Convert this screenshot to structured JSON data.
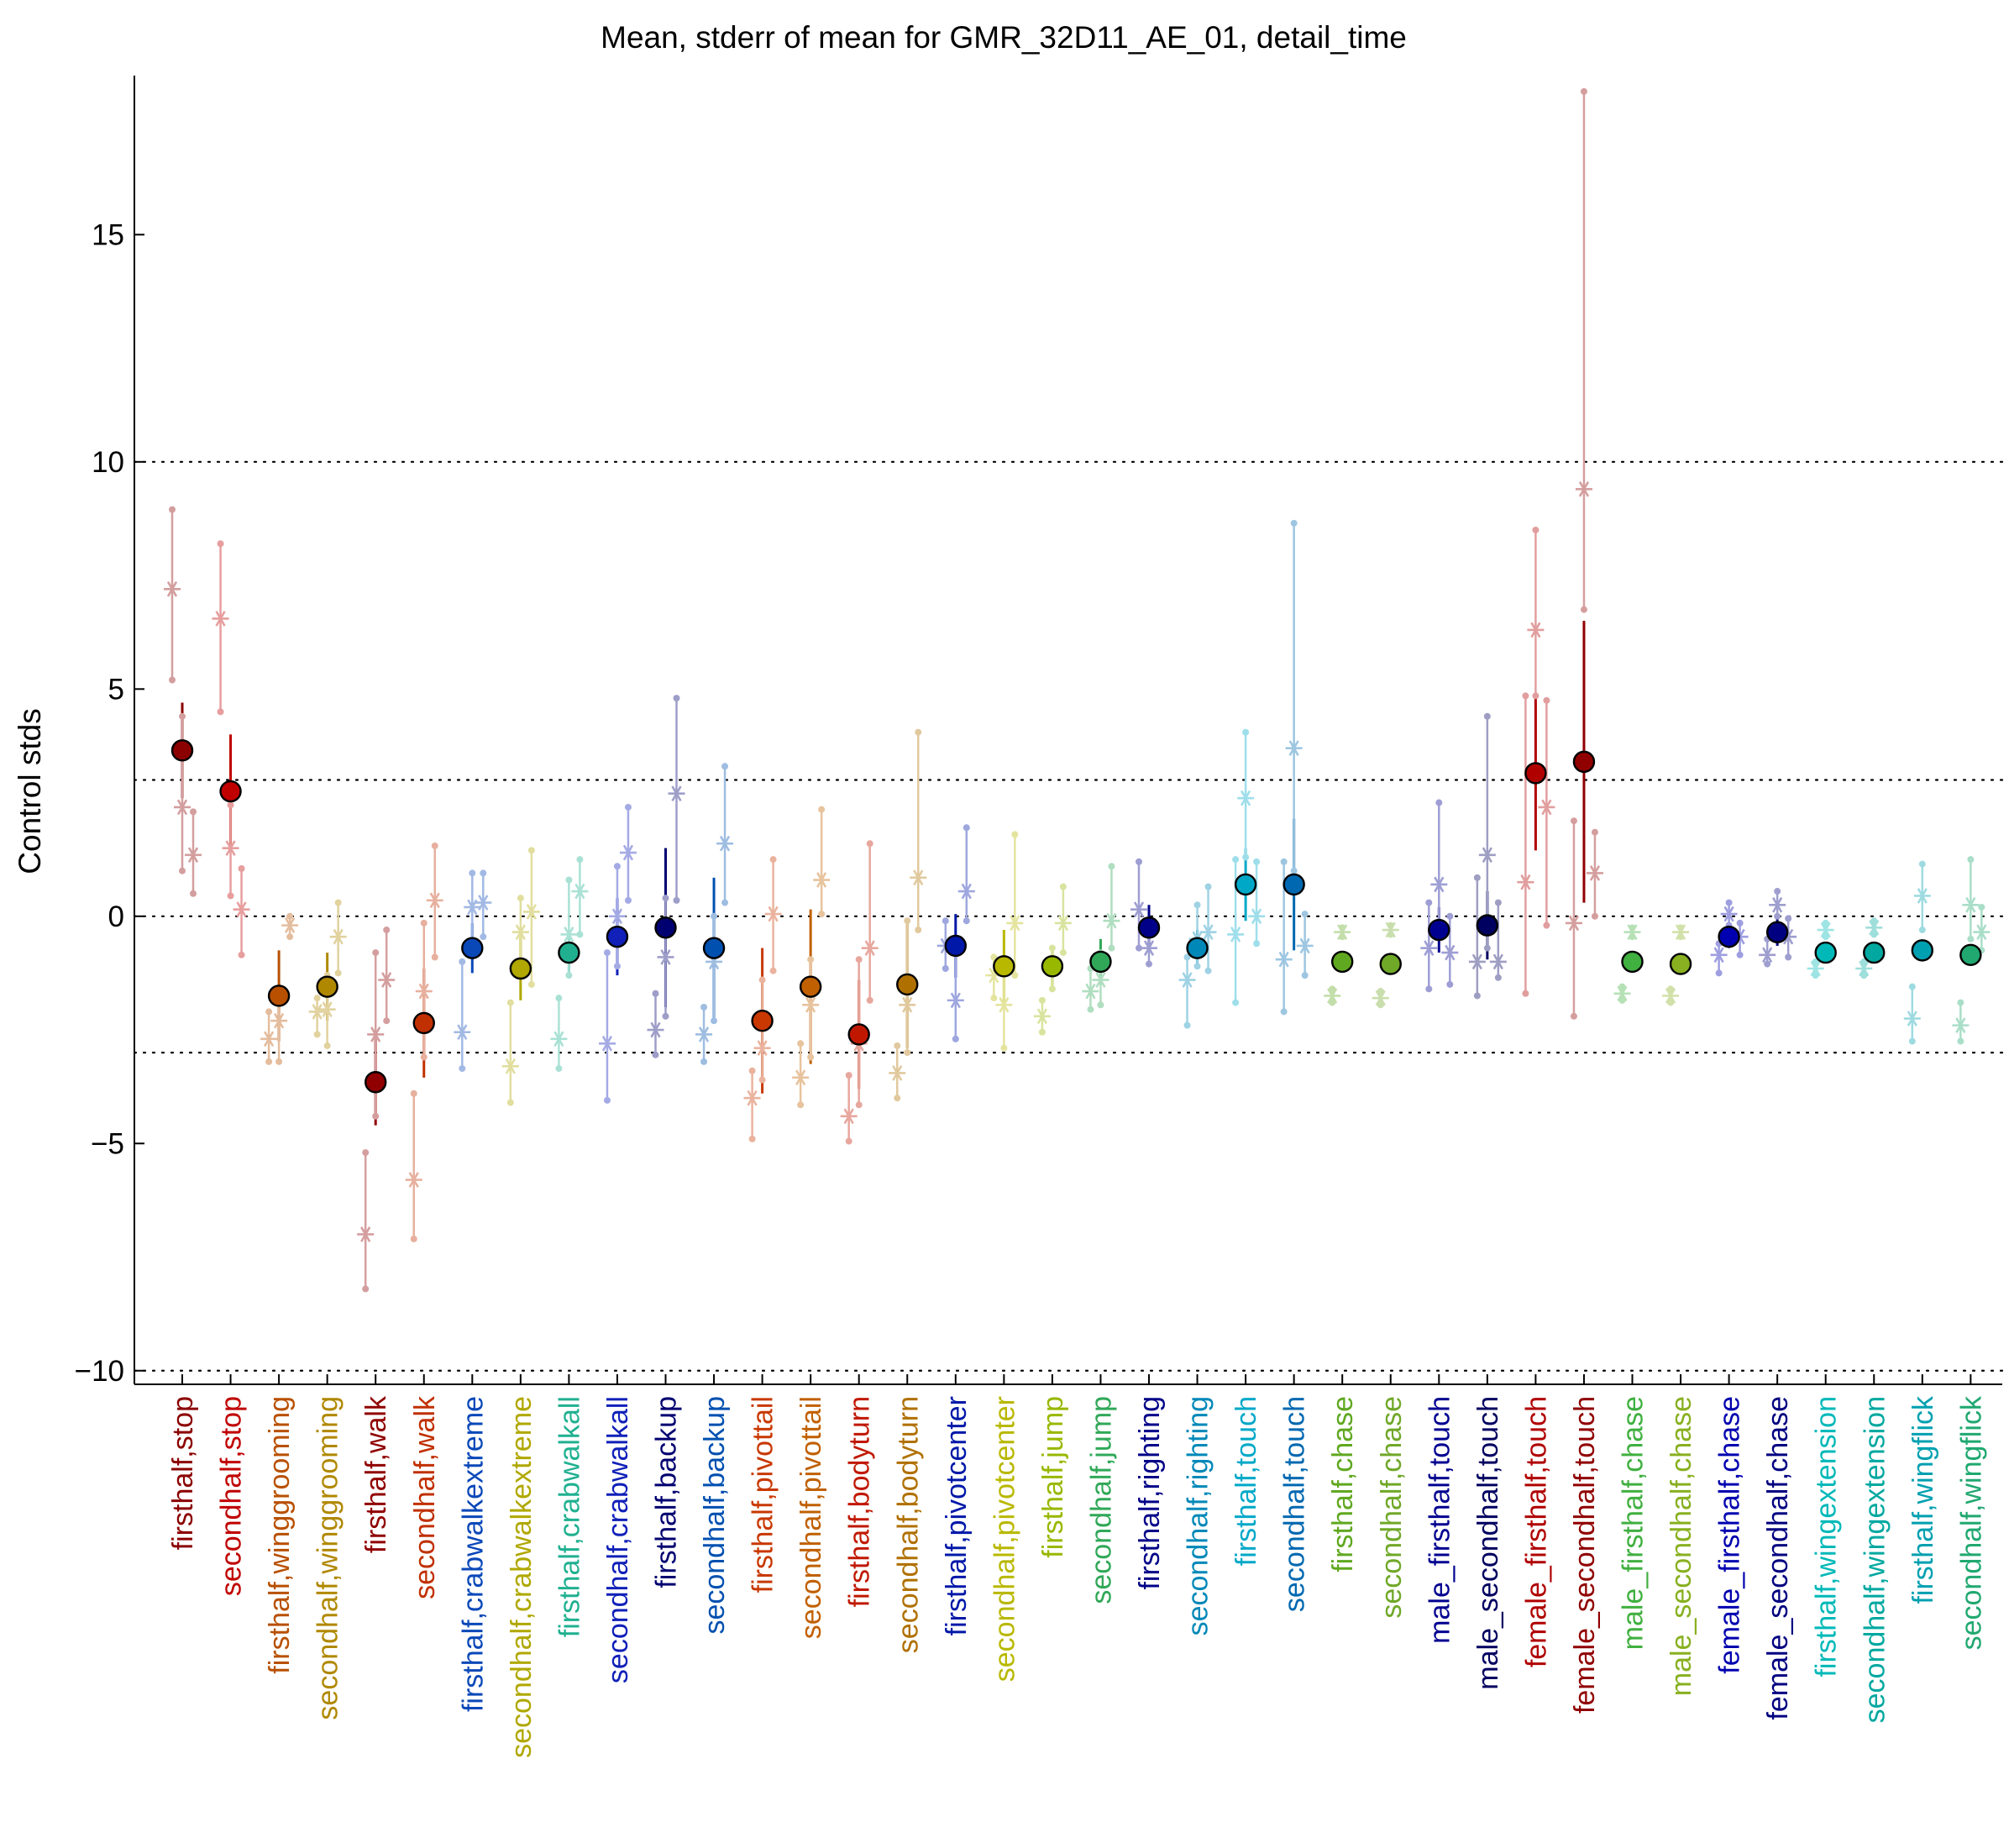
{
  "chart_data": {
    "type": "scatter",
    "title": "Mean, stderr of mean for GMR_32D11_AE_01, detail_time",
    "xlabel": "",
    "ylabel": "Control stds",
    "ylim": [
      -10.3,
      18.5
    ],
    "yticks": [
      -10,
      -5,
      0,
      5,
      10,
      15
    ],
    "reference_lines": [
      -10,
      -3,
      0,
      3,
      10
    ],
    "categories": [
      "firsthalf,stop",
      "secondhalf,stop",
      "firsthalf,winggrooming",
      "secondhalf,winggrooming",
      "firsthalf,walk",
      "secondhalf,walk",
      "firsthalf,crabwalkextreme",
      "secondhalf,crabwalkextreme",
      "firsthalf,crabwalkall",
      "secondhalf,crabwalkall",
      "firsthalf,backup",
      "secondhalf,backup",
      "firsthalf,pivottail",
      "secondhalf,pivottail",
      "firsthalf,bodyturn",
      "secondhalf,bodyturn",
      "firsthalf,pivotcenter",
      "secondhalf,pivotcenter",
      "firsthalf,jump",
      "secondhalf,jump",
      "firsthalf,righting",
      "secondhalf,righting",
      "firsthalf,touch",
      "secondhalf,touch",
      "firsthalf,chase",
      "secondhalf,chase",
      "male_firsthalf,touch",
      "male_secondhalf,touch",
      "female_firsthalf,touch",
      "female_secondhalf,touch",
      "male_firsthalf,chase",
      "male_secondhalf,chase",
      "female_firsthalf,chase",
      "female_secondhalf,chase",
      "firsthalf,wingextension",
      "secondhalf,wingextension",
      "firsthalf,wingflick",
      "secondhalf,wingflick"
    ],
    "colors": [
      "#8b0000",
      "#c00000",
      "#b85000",
      "#b08800",
      "#900000",
      "#c03000",
      "#0a48b8",
      "#b0a800",
      "#20b090",
      "#1020b8",
      "#000070",
      "#0050b0",
      "#c83800",
      "#c06000",
      "#c01800",
      "#b07000",
      "#0018a8",
      "#b8b800",
      "#98b800",
      "#30a858",
      "#000088",
      "#0088b8",
      "#00a8c8",
      "#0068b0",
      "#60a820",
      "#70a828",
      "#000090",
      "#000060",
      "#b00000",
      "#900000",
      "#40b040",
      "#88b020",
      "#0000b0",
      "#000080",
      "#00b8b8",
      "#00a8a0",
      "#00a0b0",
      "#20a870"
    ],
    "mean": [
      3.65,
      2.75,
      -1.75,
      -1.55,
      -3.65,
      -2.35,
      -0.7,
      -1.15,
      -0.8,
      -0.45,
      -0.25,
      -0.7,
      -2.3,
      -1.55,
      -2.6,
      -1.5,
      -0.65,
      -1.1,
      -1.1,
      -1.0,
      -0.25,
      -0.7,
      0.7,
      0.7,
      -1.0,
      -1.05,
      -0.3,
      -0.2,
      3.15,
      3.4,
      -1.0,
      -1.05,
      -0.45,
      -0.35,
      -0.8,
      -0.8,
      -0.75,
      -0.85
    ],
    "sem": [
      1.05,
      1.25,
      1.0,
      0.75,
      0.95,
      1.2,
      0.55,
      0.7,
      0.45,
      0.85,
      1.75,
      1.55,
      1.6,
      1.7,
      1.2,
      1.4,
      0.7,
      0.8,
      0.45,
      0.5,
      0.5,
      0.4,
      0.8,
      1.45,
      0.15,
      0.15,
      0.5,
      0.75,
      1.7,
      3.1,
      0.1,
      0.1,
      0.25,
      0.3,
      0.1,
      0.1,
      0.15,
      0.15
    ],
    "individual": [
      {
        "left": [
          7.2,
          8.95,
          5.2
        ],
        "right": [
          2.4,
          4.4,
          1.0
        ],
        "right2": [
          1.35,
          2.3,
          0.5
        ]
      },
      {
        "left": [
          6.55,
          8.2,
          4.5
        ],
        "right": [
          1.5,
          2.45,
          0.45
        ],
        "right2": [
          0.15,
          1.05,
          -0.85
        ]
      },
      {
        "left": [
          -2.7,
          -2.1,
          -3.2
        ],
        "right": [
          -2.3,
          -1.9,
          -3.2
        ],
        "right2": [
          -0.2,
          0.0,
          -0.45
        ]
      },
      {
        "left": [
          -2.1,
          -1.8,
          -2.6
        ],
        "right": [
          -2.05,
          -1.3,
          -2.85
        ],
        "right2": [
          -0.45,
          0.3,
          -1.25
        ]
      },
      {
        "left": [
          -7.0,
          -5.2,
          -8.2
        ],
        "right": [
          -2.6,
          -0.8,
          -4.4
        ],
        "right2": [
          -1.4,
          -0.3,
          -2.3
        ]
      },
      {
        "left": [
          -5.8,
          -3.9,
          -7.1
        ],
        "right": [
          -1.65,
          -0.15,
          -3.1
        ],
        "right2": [
          0.35,
          1.55,
          -0.9
        ]
      },
      {
        "left": [
          -2.55,
          -1.0,
          -3.35
        ],
        "right": [
          0.2,
          0.95,
          -0.55
        ],
        "right2": [
          0.3,
          0.95,
          -0.45
        ]
      },
      {
        "left": [
          -3.3,
          -1.9,
          -4.1
        ],
        "right": [
          -0.35,
          0.4,
          -1.2
        ],
        "right2": [
          0.1,
          1.45,
          -1.5
        ]
      },
      {
        "left": [
          -2.7,
          -1.8,
          -3.35
        ],
        "right": [
          -0.4,
          0.8,
          -1.3
        ],
        "right2": [
          0.55,
          1.25,
          -0.4
        ]
      },
      {
        "left": [
          -2.8,
          -0.8,
          -4.05
        ],
        "right": [
          0.0,
          1.1,
          -1.1
        ],
        "right2": [
          1.4,
          2.4,
          0.35
        ]
      },
      {
        "left": [
          -2.5,
          -1.7,
          -3.05
        ],
        "right": [
          -0.9,
          0.4,
          -2.2
        ],
        "right2": [
          2.7,
          4.8,
          0.35
        ]
      },
      {
        "left": [
          -2.6,
          -2.0,
          -3.2
        ],
        "right": [
          -1.0,
          0.0,
          -2.3
        ],
        "right2": [
          1.6,
          3.3,
          0.3
        ]
      },
      {
        "left": [
          -4.0,
          -3.4,
          -4.9
        ],
        "right": [
          -2.9,
          -1.4,
          -3.6
        ],
        "right2": [
          0.05,
          1.25,
          -1.2
        ]
      },
      {
        "left": [
          -3.55,
          -2.8,
          -4.15
        ],
        "right": [
          -1.95,
          -0.95,
          -3.1
        ],
        "right2": [
          0.8,
          2.35,
          0.05
        ]
      },
      {
        "left": [
          -4.4,
          -3.5,
          -4.95
        ],
        "right": [
          -2.8,
          -0.95,
          -4.15
        ],
        "right2": [
          -0.7,
          1.6,
          -1.85
        ]
      },
      {
        "left": [
          -3.45,
          -2.85,
          -4.0
        ],
        "right": [
          -1.95,
          -0.1,
          -3.0
        ],
        "right2": [
          0.85,
          4.05,
          -0.3
        ]
      },
      {
        "left": [
          -0.65,
          -0.1,
          -1.15
        ],
        "right": [
          -1.85,
          -0.8,
          -2.7
        ],
        "right2": [
          0.55,
          1.95,
          -0.1
        ]
      },
      {
        "left": [
          -1.3,
          -0.9,
          -1.8
        ],
        "right": [
          -1.95,
          -1.0,
          -2.9
        ],
        "right2": [
          -0.15,
          1.8,
          -1.3
        ]
      },
      {
        "left": [
          -2.2,
          -1.85,
          -2.55
        ],
        "right": [
          -1.15,
          -0.7,
          -1.6
        ],
        "right2": [
          -0.15,
          0.65,
          -0.8
        ]
      },
      {
        "left": [
          -1.65,
          -1.15,
          -2.05
        ],
        "right": [
          -1.4,
          -0.8,
          -1.95
        ],
        "right2": [
          -0.1,
          1.1,
          -0.7
        ]
      },
      {
        "left": [
          0.15,
          1.2,
          -0.7
        ],
        "right": [
          -0.7,
          -0.3,
          -1.05
        ],
        "right2": [
          0.0,
          0.0,
          0.0
        ]
      },
      {
        "left": [
          -1.4,
          -0.9,
          -2.4
        ],
        "right": [
          -0.5,
          0.25,
          -1.1
        ],
        "right2": [
          -0.35,
          0.65,
          -1.2
        ]
      },
      {
        "left": [
          -0.4,
          1.25,
          -1.9
        ],
        "right": [
          2.6,
          4.05,
          1.3
        ],
        "right2": [
          0.0,
          1.2,
          -0.6
        ]
      },
      {
        "left": [
          -0.95,
          1.2,
          -2.1
        ],
        "right": [
          3.7,
          8.65,
          1.0
        ],
        "right2": [
          -0.65,
          0.05,
          -1.3
        ]
      },
      {
        "left": [
          -1.75,
          -1.6,
          -1.9
        ],
        "right": [
          -0.35,
          -0.25,
          -0.45
        ],
        "right2": [
          0.0,
          0.0,
          0.0
        ]
      },
      {
        "left": [
          -1.8,
          -1.65,
          -1.95
        ],
        "right": [
          -0.3,
          -0.2,
          -0.4
        ],
        "right2": [
          0.0,
          0.0,
          0.0
        ]
      },
      {
        "left": [
          -0.7,
          0.3,
          -1.6
        ],
        "right": [
          0.7,
          2.5,
          -0.4
        ],
        "right2": [
          -0.8,
          0.0,
          -1.5
        ]
      },
      {
        "left": [
          -1.0,
          0.85,
          -1.75
        ],
        "right": [
          1.35,
          4.4,
          -0.7
        ],
        "right2": [
          -1.0,
          0.3,
          -1.35
        ]
      },
      {
        "left": [
          0.75,
          4.85,
          -1.7
        ],
        "right": [
          6.3,
          8.5,
          4.85
        ],
        "right2": [
          2.4,
          4.75,
          -0.2
        ]
      },
      {
        "left": [
          -0.15,
          2.1,
          -2.2
        ],
        "right": [
          9.4,
          18.15,
          6.75
        ],
        "right2": [
          0.95,
          1.85,
          0.0
        ]
      },
      {
        "left": [
          -1.7,
          -1.55,
          -1.85
        ],
        "right": [
          -0.35,
          -0.25,
          -0.45
        ],
        "right2": [
          0.0,
          0.0,
          0.0
        ]
      },
      {
        "left": [
          -1.75,
          -1.6,
          -1.9
        ],
        "right": [
          -0.35,
          -0.25,
          -0.45
        ],
        "right2": [
          0.0,
          0.0,
          0.0
        ]
      },
      {
        "left": [
          -0.85,
          -0.6,
          -1.25
        ],
        "right": [
          0.05,
          0.3,
          -0.2
        ],
        "right2": [
          -0.45,
          -0.15,
          -0.85
        ]
      },
      {
        "left": [
          -0.85,
          -0.5,
          -1.05
        ],
        "right": [
          0.25,
          0.55,
          0.0
        ],
        "right2": [
          -0.45,
          -0.05,
          -0.9
        ]
      },
      {
        "left": [
          -1.15,
          -1.0,
          -1.3
        ],
        "right": [
          -0.3,
          -0.15,
          -0.45
        ],
        "right2": [
          0.0,
          0.0,
          0.0
        ]
      },
      {
        "left": [
          -1.15,
          -1.0,
          -1.3
        ],
        "right": [
          -0.25,
          -0.1,
          -0.4
        ],
        "right2": [
          0.0,
          0.0,
          0.0
        ]
      },
      {
        "left": [
          -2.25,
          -1.55,
          -2.75
        ],
        "right": [
          0.45,
          1.15,
          -0.3
        ],
        "right2": [
          0.0,
          0.0,
          0.0
        ]
      },
      {
        "left": [
          -2.4,
          -1.9,
          -2.75
        ],
        "right": [
          0.25,
          1.25,
          -0.5
        ],
        "right2": [
          -0.35,
          0.2,
          -0.75
        ]
      }
    ]
  }
}
